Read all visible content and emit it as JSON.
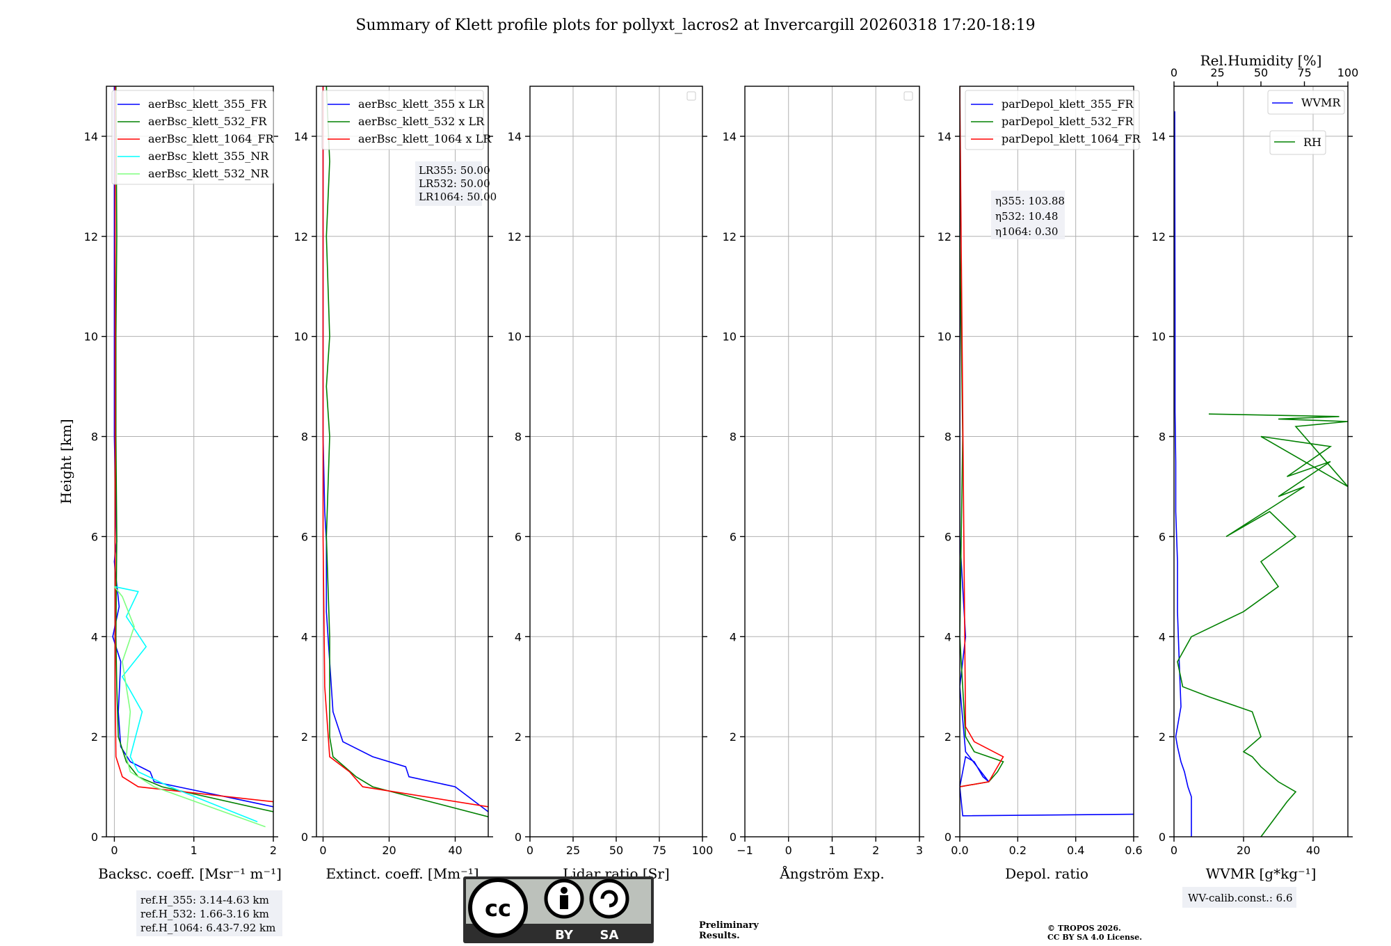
{
  "title": "Summary of Klett profile plots for pollyxt_lacros2 at Invercargill 20260318 17:20-18:19",
  "colors": {
    "c355": "#0000ff",
    "c532": "#008000",
    "c1064": "#ff0000",
    "c355nr": "#00ffff",
    "c532nr": "#7fff7f",
    "grid": "#b0b0b0",
    "boxbg": "#eef0f5",
    "preliminary": "#ff0000"
  },
  "chart_data": [
    {
      "type": "line",
      "name": "backscatter",
      "xlabel": "Backsc. coeff. [Msr⁻¹ m⁻¹]",
      "ylabel": "Height [km]",
      "xlim": [
        -0.1,
        2.0
      ],
      "ylim": [
        0,
        15
      ],
      "xticks": [
        0,
        1,
        2
      ],
      "xticklabels": [
        "0",
        "1",
        "2"
      ],
      "yticks": [
        0,
        2,
        4,
        6,
        8,
        10,
        12,
        14
      ],
      "yticklabels": [
        "0",
        "2",
        "4",
        "6",
        "8",
        "10",
        "12",
        "14"
      ],
      "legend": [
        "aerBsc_klett_355_FR",
        "aerBsc_klett_532_FR",
        "aerBsc_klett_1064_FR",
        "aerBsc_klett_355_NR",
        "aerBsc_klett_532_NR"
      ],
      "series": [
        {
          "name": "aerBsc_klett_355_FR",
          "color_key": "c355",
          "x": [
            2.0,
            0.8,
            0.5,
            0.45,
            0.2,
            0.08,
            0.05,
            0.08,
            -0.02,
            0.06,
            0.0,
            0.03,
            0.02,
            0.0,
            0.0,
            0.0,
            0.0,
            0.0
          ],
          "y": [
            0.6,
            1.0,
            1.1,
            1.3,
            1.5,
            1.8,
            2.5,
            3.5,
            4.0,
            4.6,
            5.5,
            5.9,
            6.5,
            8.0,
            10.0,
            11.0,
            13.0,
            15.0
          ]
        },
        {
          "name": "aerBsc_klett_532_FR",
          "color_key": "c532",
          "x": [
            2.0,
            0.6,
            0.3,
            0.15,
            0.05,
            0.03,
            0.02,
            0.03,
            0.02,
            0.02,
            0.03,
            0.02
          ],
          "y": [
            0.5,
            1.0,
            1.2,
            1.5,
            2.0,
            3.0,
            4.0,
            6.0,
            8.0,
            10.0,
            12.0,
            15.0
          ]
        },
        {
          "name": "aerBsc_klett_1064_FR",
          "color_key": "c1064",
          "x": [
            2.0,
            0.3,
            0.1,
            0.02,
            0.01,
            0.01,
            0.01,
            0.01
          ],
          "y": [
            0.7,
            1.0,
            1.2,
            1.6,
            3.0,
            6.0,
            10.0,
            15.0
          ]
        },
        {
          "name": "aerBsc_klett_355_NR",
          "color_key": "c355nr",
          "x": [
            1.8,
            0.7,
            0.3,
            0.2,
            0.35,
            0.1,
            0.4,
            0.15,
            0.3,
            0.0
          ],
          "y": [
            0.3,
            1.0,
            1.3,
            1.6,
            2.5,
            3.2,
            3.8,
            4.4,
            4.9,
            5.0
          ]
        },
        {
          "name": "aerBsc_klett_532_NR",
          "color_key": "c532nr",
          "x": [
            1.9,
            0.5,
            0.2,
            0.15,
            0.2,
            0.1,
            0.25,
            0.1,
            0.0
          ],
          "y": [
            0.2,
            1.0,
            1.3,
            1.6,
            2.5,
            3.5,
            4.2,
            4.8,
            5.0
          ]
        }
      ],
      "annotations": [
        "ref.H_355: 3.14-4.63 km",
        "ref.H_532: 1.66-3.16 km",
        "ref.H_1064: 6.43-7.92 km"
      ]
    },
    {
      "type": "line",
      "name": "extinction",
      "xlabel": "Extinct. coeff. [Mm⁻¹]",
      "xlim": [
        -2,
        50
      ],
      "ylim": [
        0,
        15
      ],
      "xticks": [
        0,
        20,
        40
      ],
      "xticklabels": [
        "0",
        "20",
        "40"
      ],
      "yticks": [
        0,
        2,
        4,
        6,
        8,
        10,
        12,
        14
      ],
      "yticklabels": [
        "0",
        "2",
        "4",
        "6",
        "8",
        "10",
        "12",
        "14"
      ],
      "legend": [
        "aerBsc_klett_355 x LR",
        "aerBsc_klett_532 x LR",
        "aerBsc_klett_1064 x LR"
      ],
      "series": [
        {
          "name": "aerBsc_klett_355 x LR",
          "color_key": "c355",
          "x": [
            50,
            40,
            26,
            25,
            15,
            6,
            3,
            2,
            1,
            1,
            0.5,
            0,
            0,
            0,
            0
          ],
          "y": [
            0.5,
            1.0,
            1.2,
            1.4,
            1.6,
            1.9,
            2.5,
            3.5,
            4.5,
            5.9,
            6.5,
            8,
            10,
            12,
            15
          ]
        },
        {
          "name": "aerBsc_klett_532 x LR",
          "color_key": "c532",
          "x": [
            50,
            15,
            10,
            3,
            2,
            2,
            1,
            2,
            1,
            2,
            1,
            2,
            1
          ],
          "y": [
            0.4,
            1.0,
            1.2,
            1.6,
            2.0,
            4.0,
            6.0,
            8.0,
            9.0,
            10.0,
            12.0,
            13.5,
            15.0
          ]
        },
        {
          "name": "aerBsc_klett_1064 x LR",
          "color_key": "c1064",
          "x": [
            50,
            12,
            8,
            2,
            0.5,
            0,
            0,
            0
          ],
          "y": [
            0.6,
            1.0,
            1.3,
            1.6,
            3.0,
            6.0,
            10.0,
            15.0
          ]
        }
      ],
      "annotations": [
        "LR355: 50.00",
        "LR532: 50.00",
        "LR1064: 50.00"
      ]
    },
    {
      "type": "line",
      "name": "lidar_ratio",
      "xlabel": "Lidar ratio [Sr]",
      "xlim": [
        0,
        100
      ],
      "ylim": [
        0,
        15
      ],
      "xticks": [
        0,
        25,
        50,
        75,
        100
      ],
      "xticklabels": [
        "0",
        "25",
        "50",
        "75",
        "100"
      ],
      "yticks": [
        0,
        2,
        4,
        6,
        8,
        10,
        12,
        14
      ],
      "yticklabels": [
        "0",
        "2",
        "4",
        "6",
        "8",
        "10",
        "12",
        "14"
      ],
      "series": []
    },
    {
      "type": "line",
      "name": "angstrom",
      "xlabel": "Ångström Exp.",
      "xlim": [
        -1,
        3
      ],
      "ylim": [
        0,
        15
      ],
      "xticks": [
        -1,
        0,
        1,
        2,
        3
      ],
      "xticklabels": [
        "−1",
        "0",
        "1",
        "2",
        "3"
      ],
      "yticks": [
        0,
        2,
        4,
        6,
        8,
        10,
        12,
        14
      ],
      "yticklabels": [
        "0",
        "2",
        "4",
        "6",
        "8",
        "10",
        "12",
        "14"
      ],
      "series": []
    },
    {
      "type": "line",
      "name": "depolarization",
      "xlabel": "Depol. ratio",
      "xlim": [
        0,
        0.6
      ],
      "ylim": [
        0,
        15
      ],
      "xticks": [
        0,
        0.2,
        0.4,
        0.6
      ],
      "xticklabels": [
        "0.0",
        "0.2",
        "0.4",
        "0.6"
      ],
      "yticks": [
        0,
        2,
        4,
        6,
        8,
        10,
        12,
        14
      ],
      "yticklabels": [
        "0",
        "2",
        "4",
        "6",
        "8",
        "10",
        "12",
        "14"
      ],
      "legend": [
        "parDepol_klett_355_FR",
        "parDepol_klett_532_FR",
        "parDepol_klett_1064_FR"
      ],
      "series": [
        {
          "name": "parDepol_klett_355_FR",
          "color_key": "c355",
          "x": [
            0.6,
            0.01,
            0.0,
            0.02,
            0.05,
            0.08,
            0.1,
            0.02,
            0.0,
            0.02,
            0.0,
            0.0,
            0.0
          ],
          "y": [
            0.45,
            0.42,
            1.0,
            1.6,
            1.5,
            1.2,
            1.1,
            1.7,
            3.0,
            4.0,
            6.0,
            10.0,
            15.0
          ]
        },
        {
          "name": "parDepol_klett_532_FR",
          "color_key": "c532",
          "x": [
            0.0,
            0.1,
            0.13,
            0.15,
            0.05,
            0.02,
            0.0,
            0.01,
            0.0,
            0.0
          ],
          "y": [
            1.0,
            1.1,
            1.3,
            1.5,
            1.7,
            2.0,
            4.0,
            8.0,
            12.0,
            15.0
          ]
        },
        {
          "name": "parDepol_klett_1064_FR",
          "color_key": "c1064",
          "x": [
            0.0,
            0.1,
            0.12,
            0.15,
            0.05,
            0.02,
            0.0
          ],
          "y": [
            1.0,
            1.1,
            1.3,
            1.6,
            1.9,
            2.2,
            15.0
          ]
        }
      ],
      "annotations": [
        "η355: 103.88",
        "η532: 10.48",
        "η1064: 0.30"
      ]
    },
    {
      "type": "line",
      "name": "wvmr_rh",
      "xlabel": "WVMR [g*kg⁻¹]",
      "x2label": "Rel.Humidity [%]",
      "xlim": [
        0,
        50
      ],
      "x2lim": [
        0,
        100
      ],
      "ylim": [
        0,
        15
      ],
      "xticks": [
        0,
        20,
        40
      ],
      "xticklabels": [
        "0",
        "20",
        "40"
      ],
      "x2ticks": [
        0,
        25,
        50,
        75,
        100
      ],
      "x2ticklabels": [
        "0",
        "25",
        "50",
        "75",
        "100"
      ],
      "yticks": [
        0,
        2,
        4,
        6,
        8,
        10,
        12,
        14
      ],
      "yticklabels": [
        "0",
        "2",
        "4",
        "6",
        "8",
        "10",
        "12",
        "14"
      ],
      "legend": [
        "WVMR",
        "RH"
      ],
      "series": [
        {
          "name": "WVMR",
          "color_key": "c355",
          "axis": "x",
          "x": [
            5,
            5,
            4,
            3,
            2,
            1,
            0.5,
            2,
            1.5,
            1,
            1,
            0.5,
            0.5,
            0.3,
            0.3,
            0.2
          ],
          "y": [
            0,
            0.8,
            1.0,
            1.3,
            1.5,
            1.8,
            2.0,
            2.6,
            3.5,
            4.5,
            5.5,
            6.5,
            7.5,
            8.5,
            10.5,
            14.5
          ]
        },
        {
          "name": "RH",
          "color_key": "c532",
          "axis": "x2",
          "x": [
            50,
            65,
            70,
            60,
            50,
            45,
            40,
            50,
            45,
            20,
            5,
            2,
            10,
            40,
            60,
            50,
            70,
            55,
            30,
            75,
            60,
            90,
            65,
            90,
            50,
            100,
            70,
            100,
            60,
            95,
            20
          ],
          "y": [
            0,
            0.7,
            0.9,
            1.1,
            1.4,
            1.6,
            1.7,
            2.0,
            2.5,
            2.8,
            3.0,
            3.5,
            4.0,
            4.5,
            5.0,
            5.5,
            6.0,
            6.5,
            6.0,
            7.0,
            6.8,
            7.5,
            7.2,
            7.8,
            8.0,
            7.0,
            8.2,
            8.3,
            8.35,
            8.4,
            8.45
          ]
        }
      ],
      "annotations": [
        "WV-calib.const.: 6.6"
      ]
    }
  ],
  "footer": {
    "cc_badge": "CC BY SA",
    "preliminary": "Preliminary Results.",
    "copyright_line1": "© TROPOS 2026.",
    "copyright_line2": "CC BY SA 4.0 License."
  }
}
